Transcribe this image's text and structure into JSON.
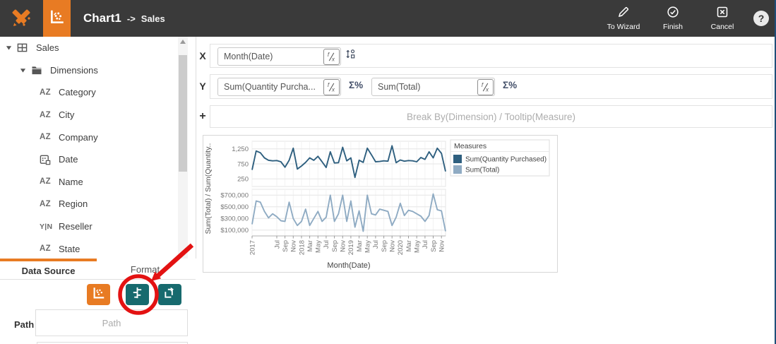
{
  "window": {
    "right_edge_color": "#1f4e79",
    "header_bg": "#3a3a3a"
  },
  "header": {
    "title": "Chart1",
    "title_arrow": "->",
    "title_target": "Sales",
    "actions": [
      {
        "label": "To Wizard",
        "icon": "pencil-icon"
      },
      {
        "label": "Finish",
        "icon": "check-circle-icon"
      },
      {
        "label": "Cancel",
        "icon": "close-box-icon"
      }
    ],
    "help_label": "?"
  },
  "sidebar": {
    "tree": [
      {
        "label": "Sales",
        "icon": "table",
        "level": 0,
        "caret": true
      },
      {
        "label": "Dimensions",
        "icon": "folder",
        "level": 1,
        "caret": true
      },
      {
        "label": "Category",
        "icon": "az",
        "level": 2
      },
      {
        "label": "City",
        "icon": "az",
        "level": 2
      },
      {
        "label": "Company",
        "icon": "az",
        "level": 2
      },
      {
        "label": "Date",
        "icon": "calendar",
        "level": 2
      },
      {
        "label": "Name",
        "icon": "az",
        "level": 2
      },
      {
        "label": "Region",
        "icon": "az",
        "level": 2
      },
      {
        "label": "Reseller",
        "icon": "yn",
        "level": 2
      },
      {
        "label": "State",
        "icon": "az",
        "level": 2
      }
    ]
  },
  "footer": {
    "tabs": [
      {
        "label": "Data Source",
        "active": true
      },
      {
        "label": "Format",
        "active": false
      }
    ],
    "buttons": [
      {
        "name": "chart-type-button",
        "icon": "scatter-chart",
        "color": "#e87b23"
      },
      {
        "name": "field-layout-button",
        "icon": "field-layout",
        "color": "#176a6e",
        "annotated": true
      },
      {
        "name": "flip-page-button",
        "icon": "flip-page",
        "color": "#176a6e"
      }
    ],
    "path_label": "Path",
    "path_placeholder": "Path"
  },
  "builder": {
    "x_row_label": "X",
    "x_field_value": "Month(Date)",
    "y_row_label": "Y",
    "y_field_1_value": "Sum(Quantity Purcha...",
    "y_field_2_value": "Sum(Total)",
    "plus_row_label": "+",
    "break_by_placeholder": "Break By(Dimension) / Tooltip(Measure)",
    "sigma_label": "Σ%"
  },
  "annotation": {
    "color": "#e31212",
    "shape": "circle-around-field-layout-button-with-arrow"
  },
  "chart_data": {
    "type": "line",
    "xlabel": "Month(Date)",
    "ylabel": "Sum(Total) / Sum(Quantity..",
    "legend_title": "Measures",
    "legend_position": "right-top",
    "grid": true,
    "months": [
      "2017-01",
      "2017-02",
      "2017-03",
      "2017-04",
      "2017-05",
      "2017-06",
      "2017-07",
      "2017-08",
      "2017-09",
      "2017-10",
      "2017-11",
      "2017-12",
      "2018-01",
      "2018-02",
      "2018-03",
      "2018-04",
      "2018-05",
      "2018-06",
      "2018-07",
      "2018-08",
      "2018-09",
      "2018-10",
      "2018-11",
      "2018-12",
      "2019-01",
      "2019-02",
      "2019-03",
      "2019-04",
      "2019-05",
      "2019-06",
      "2019-07",
      "2019-08",
      "2019-09",
      "2019-10",
      "2019-11",
      "2019-12",
      "2020-01",
      "2020-02",
      "2020-03",
      "2020-04",
      "2020-05",
      "2020-06",
      "2020-07",
      "2020-08",
      "2020-09",
      "2020-10",
      "2020-11",
      "2020-12"
    ],
    "x_ticks": [
      {
        "label": "2017",
        "i": 0
      },
      {
        "label": "Jul",
        "i": 6
      },
      {
        "label": "Sep",
        "i": 8
      },
      {
        "label": "Nov",
        "i": 10
      },
      {
        "label": "2018",
        "i": 12
      },
      {
        "label": "Mar",
        "i": 14
      },
      {
        "label": "May",
        "i": 16
      },
      {
        "label": "Jul",
        "i": 18
      },
      {
        "label": "Sep",
        "i": 20
      },
      {
        "label": "Nov",
        "i": 22
      },
      {
        "label": "2019",
        "i": 24
      },
      {
        "label": "Mar",
        "i": 26
      },
      {
        "label": "May",
        "i": 28
      },
      {
        "label": "Jul",
        "i": 30
      },
      {
        "label": "Sep",
        "i": 32
      },
      {
        "label": "Nov",
        "i": 34
      },
      {
        "label": "2020",
        "i": 36
      },
      {
        "label": "Mar",
        "i": 38
      },
      {
        "label": "May",
        "i": 40
      },
      {
        "label": "Jul",
        "i": 42
      },
      {
        "label": "Sep",
        "i": 44
      },
      {
        "label": "Nov",
        "i": 46
      }
    ],
    "panels": [
      {
        "series": "Sum(Quantity Purchased)",
        "color": "#2e5f7f",
        "ylim": [
          0,
          1500
        ],
        "yticks": [
          {
            "label": "250",
            "value": 250
          },
          {
            "label": "750",
            "value": 750
          },
          {
            "label": "1,250",
            "value": 1250
          }
        ],
        "values": [
          550,
          1180,
          1120,
          950,
          870,
          850,
          860,
          820,
          640,
          870,
          1270,
          580,
          680,
          800,
          950,
          870,
          1000,
          820,
          630,
          1150,
          780,
          790,
          1300,
          850,
          950,
          300,
          870,
          800,
          1270,
          1050,
          820,
          830,
          850,
          840,
          1350,
          790,
          880,
          840,
          860,
          850,
          820,
          960,
          900,
          1150,
          950,
          1270,
          1100,
          500
        ]
      },
      {
        "series": "Sum(Total)",
        "color": "#8fabc3",
        "ylim": [
          0,
          800000
        ],
        "yticks": [
          {
            "label": "$100,000",
            "value": 100000
          },
          {
            "label": "$300,000",
            "value": 300000
          },
          {
            "label": "$500,000",
            "value": 500000
          },
          {
            "label": "$700,000",
            "value": 700000
          }
        ],
        "values": [
          200000,
          600000,
          580000,
          420000,
          310000,
          380000,
          330000,
          260000,
          250000,
          580000,
          300000,
          180000,
          250000,
          460000,
          180000,
          300000,
          420000,
          250000,
          320000,
          700000,
          250000,
          380000,
          700000,
          250000,
          600000,
          150000,
          430000,
          80000,
          700000,
          380000,
          360000,
          460000,
          440000,
          420000,
          180000,
          320000,
          560000,
          350000,
          440000,
          420000,
          380000,
          340000,
          250000,
          350000,
          720000,
          450000,
          430000,
          80000
        ]
      }
    ]
  }
}
